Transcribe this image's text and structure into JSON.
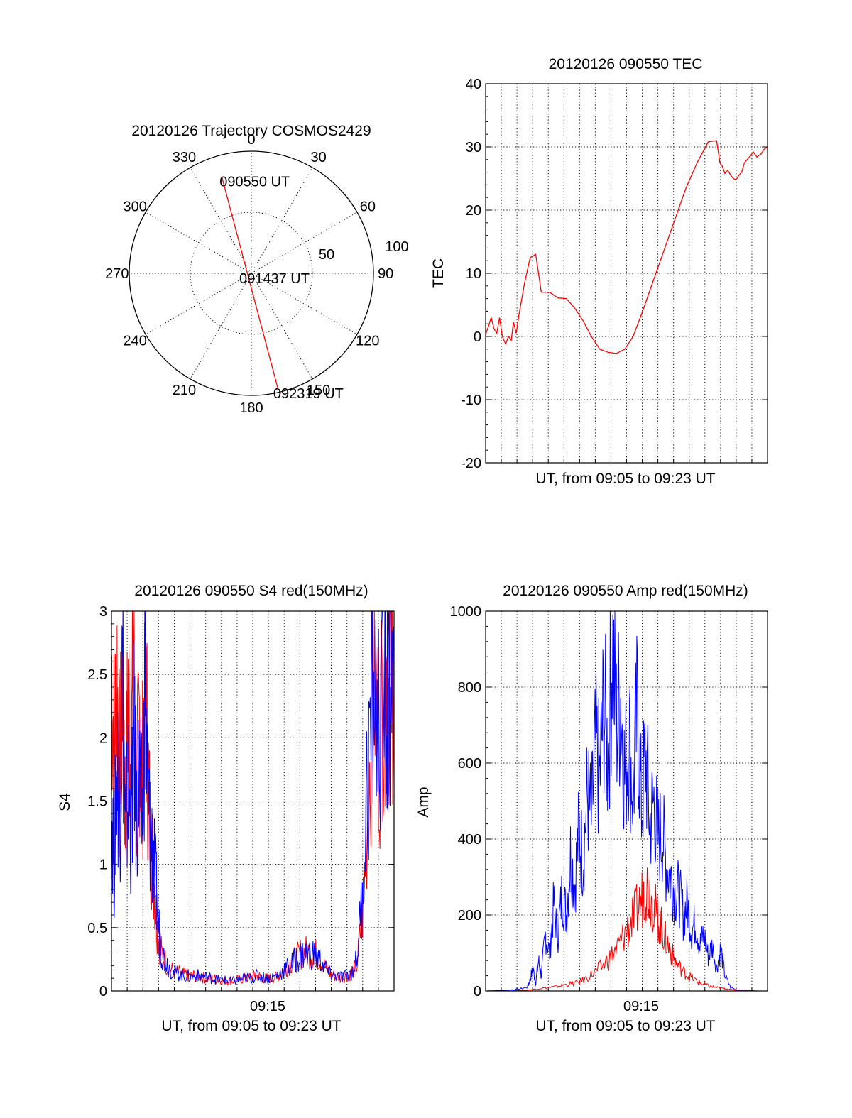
{
  "colors": {
    "red_series": "#ff0000",
    "blue_series": "#0000ff",
    "grid": "#000000"
  },
  "chart_data": [
    {
      "id": "polar",
      "type": "polar-trajectory",
      "title": "20120126 Trajectory COSMOS2429",
      "azimuth_labels": [
        "0",
        "30",
        "60",
        "90",
        "120",
        "150",
        "180",
        "210",
        "240",
        "270",
        "300",
        "330"
      ],
      "radial_ticks": [
        50,
        100
      ],
      "radial_max": 100,
      "track": [
        {
          "az": 343,
          "zen": 83,
          "label": "090550 UT"
        },
        {
          "az": 0,
          "zen": 0,
          "label": "091437 UT"
        },
        {
          "az": 167,
          "zen": 98,
          "label": "092319 UT"
        }
      ]
    },
    {
      "id": "tec",
      "type": "line",
      "title": "20120126 090550 TEC",
      "xlabel": "UT, from 09:05 to 09:23 UT",
      "ylabel": "TEC",
      "xlim": [
        0,
        1013
      ],
      "ylim": [
        -20,
        40
      ],
      "yticks": [
        -20,
        -10,
        0,
        10,
        20,
        30,
        40
      ],
      "grid": true,
      "series": [
        {
          "color": "#ff0000",
          "x": [
            0,
            10,
            20,
            30,
            40,
            50,
            60,
            72,
            82,
            92,
            100,
            110,
            120,
            140,
            160,
            180,
            200,
            230,
            260,
            290,
            320,
            350,
            380,
            410,
            440,
            470,
            500,
            530,
            560,
            600,
            640,
            680,
            720,
            760,
            800,
            830,
            842,
            850,
            860,
            870,
            880,
            890,
            900,
            910,
            920,
            930,
            940,
            950,
            962,
            975,
            990,
            1000,
            1013
          ],
          "y": [
            0.3,
            1.6,
            3.0,
            1.2,
            0.5,
            3.0,
            0,
            -1.2,
            0,
            -0.6,
            2.3,
            0.5,
            3.5,
            8.5,
            12.5,
            13.0,
            7.0,
            7.0,
            6.1,
            6.0,
            4.5,
            2.5,
            0,
            -2.0,
            -2.5,
            -2.7,
            -2.0,
            0,
            3.5,
            8.5,
            13.5,
            18.5,
            23.5,
            27.5,
            30.8,
            31.0,
            27.5,
            27.0,
            25.8,
            26.3,
            25.6,
            25.0,
            24.8,
            25.5,
            26.0,
            27.5,
            28.0,
            28.5,
            29.2,
            28.4,
            28.9,
            29.6,
            30.0
          ]
        }
      ]
    },
    {
      "id": "s4",
      "type": "line",
      "title": "20120126 090550 S4 red(150MHz)",
      "xlabel": "UT, from 09:05 to 09:23 UT",
      "ylabel": "S4",
      "xtick_label": "09:15",
      "xlim": [
        0,
        1013
      ],
      "ylim": [
        0,
        3
      ],
      "yticks": [
        0,
        0.5,
        1,
        1.5,
        2,
        2.5,
        3
      ],
      "grid": true,
      "series": [
        {
          "color": "#ff0000",
          "x": [
            0,
            10,
            20,
            30,
            40,
            50,
            60,
            70,
            80,
            90,
            100,
            110,
            120,
            130,
            140,
            150,
            160,
            170,
            180,
            200,
            220,
            240,
            260,
            280,
            300,
            320,
            340,
            360,
            380,
            400,
            420,
            440,
            460,
            480,
            500,
            520,
            540,
            560,
            580,
            600,
            620,
            640,
            660,
            680,
            700,
            720,
            740,
            760,
            780,
            800,
            820,
            840,
            860,
            880,
            900,
            920,
            940,
            960,
            980,
            990,
            1000,
            1013
          ],
          "y": [
            2.6,
            1.9,
            2.5,
            1.6,
            2.8,
            1.3,
            2.4,
            1.7,
            2.9,
            1.4,
            2.2,
            1.6,
            2.7,
            1.8,
            1.2,
            1.0,
            0.6,
            0.4,
            0.3,
            0.2,
            0.16,
            0.14,
            0.13,
            0.12,
            0.12,
            0.11,
            0.1,
            0.1,
            0.09,
            0.08,
            0.08,
            0.08,
            0.09,
            0.1,
            0.11,
            0.12,
            0.1,
            0.1,
            0.1,
            0.12,
            0.17,
            0.22,
            0.25,
            0.3,
            0.31,
            0.3,
            0.28,
            0.2,
            0.15,
            0.12,
            0.1,
            0.12,
            0.14,
            0.2,
            0.6,
            1.5,
            2.6,
            1.9,
            2.7,
            2.3,
            2.8,
            2.5
          ]
        },
        {
          "color": "#0000ff",
          "x": [
            0,
            10,
            20,
            30,
            40,
            50,
            60,
            70,
            80,
            90,
            100,
            110,
            120,
            130,
            140,
            150,
            160,
            170,
            180,
            200,
            220,
            240,
            260,
            280,
            300,
            320,
            340,
            360,
            380,
            400,
            420,
            440,
            460,
            480,
            500,
            520,
            540,
            560,
            580,
            600,
            620,
            640,
            660,
            680,
            700,
            720,
            740,
            760,
            780,
            800,
            820,
            840,
            860,
            880,
            900,
            920,
            940,
            960,
            980,
            990,
            1000,
            1013
          ],
          "y": [
            1.5,
            1.0,
            1.8,
            1.4,
            2.5,
            1.2,
            1.6,
            1.3,
            2.0,
            1.4,
            1.7,
            1.3,
            2.4,
            1.5,
            1.2,
            1.1,
            0.8,
            0.5,
            0.3,
            0.22,
            0.15,
            0.13,
            0.12,
            0.11,
            0.12,
            0.12,
            0.11,
            0.1,
            0.09,
            0.09,
            0.08,
            0.08,
            0.09,
            0.1,
            0.1,
            0.12,
            0.11,
            0.1,
            0.11,
            0.13,
            0.17,
            0.2,
            0.25,
            0.28,
            0.3,
            0.29,
            0.26,
            0.2,
            0.14,
            0.12,
            0.11,
            0.12,
            0.14,
            0.25,
            0.8,
            1.8,
            2.4,
            2.0,
            2.6,
            2.1,
            2.5,
            2.2
          ]
        }
      ]
    },
    {
      "id": "amp",
      "type": "line",
      "title": "20120126 090550 Amp red(150MHz)",
      "xlabel": "UT, from 09:05 to 09:23 UT",
      "ylabel": "Amp",
      "xtick_label": "09:15",
      "xlim": [
        0,
        1013
      ],
      "ylim": [
        0,
        1000
      ],
      "yticks": [
        0,
        200,
        400,
        600,
        800,
        1000
      ],
      "grid": true,
      "series": [
        {
          "color": "#0000ff",
          "x": [
            0,
            40,
            80,
            120,
            150,
            160,
            170,
            180,
            190,
            200,
            215,
            230,
            245,
            260,
            275,
            290,
            305,
            320,
            335,
            350,
            365,
            380,
            395,
            410,
            425,
            440,
            455,
            470,
            485,
            500,
            515,
            530,
            545,
            560,
            575,
            590,
            605,
            620,
            635,
            650,
            665,
            680,
            695,
            710,
            725,
            740,
            755,
            770,
            785,
            800,
            815,
            830,
            845,
            860,
            880,
            900,
            940,
            980,
            1013
          ],
          "y": [
            0,
            1,
            2,
            5,
            10,
            30,
            60,
            20,
            80,
            40,
            150,
            100,
            230,
            150,
            260,
            200,
            360,
            280,
            420,
            350,
            520,
            450,
            640,
            560,
            760,
            600,
            920,
            700,
            780,
            560,
            680,
            520,
            740,
            480,
            620,
            440,
            500,
            400,
            420,
            330,
            300,
            260,
            260,
            200,
            230,
            160,
            180,
            120,
            150,
            90,
            120,
            60,
            110,
            40,
            10,
            3,
            1,
            0,
            0
          ]
        },
        {
          "color": "#ff0000",
          "x": [
            0,
            80,
            150,
            180,
            210,
            240,
            270,
            300,
            330,
            360,
            390,
            420,
            450,
            480,
            500,
            520,
            540,
            560,
            575,
            590,
            605,
            620,
            635,
            650,
            665,
            680,
            700,
            720,
            740,
            760,
            780,
            800,
            820,
            840,
            860,
            880,
            900,
            940,
            980,
            1013
          ],
          "y": [
            0,
            0,
            2,
            5,
            8,
            10,
            14,
            18,
            22,
            32,
            48,
            65,
            90,
            120,
            150,
            175,
            205,
            240,
            280,
            255,
            225,
            190,
            160,
            130,
            105,
            80,
            60,
            45,
            35,
            25,
            18,
            14,
            10,
            8,
            6,
            4,
            2,
            1,
            0,
            0
          ]
        }
      ]
    }
  ]
}
